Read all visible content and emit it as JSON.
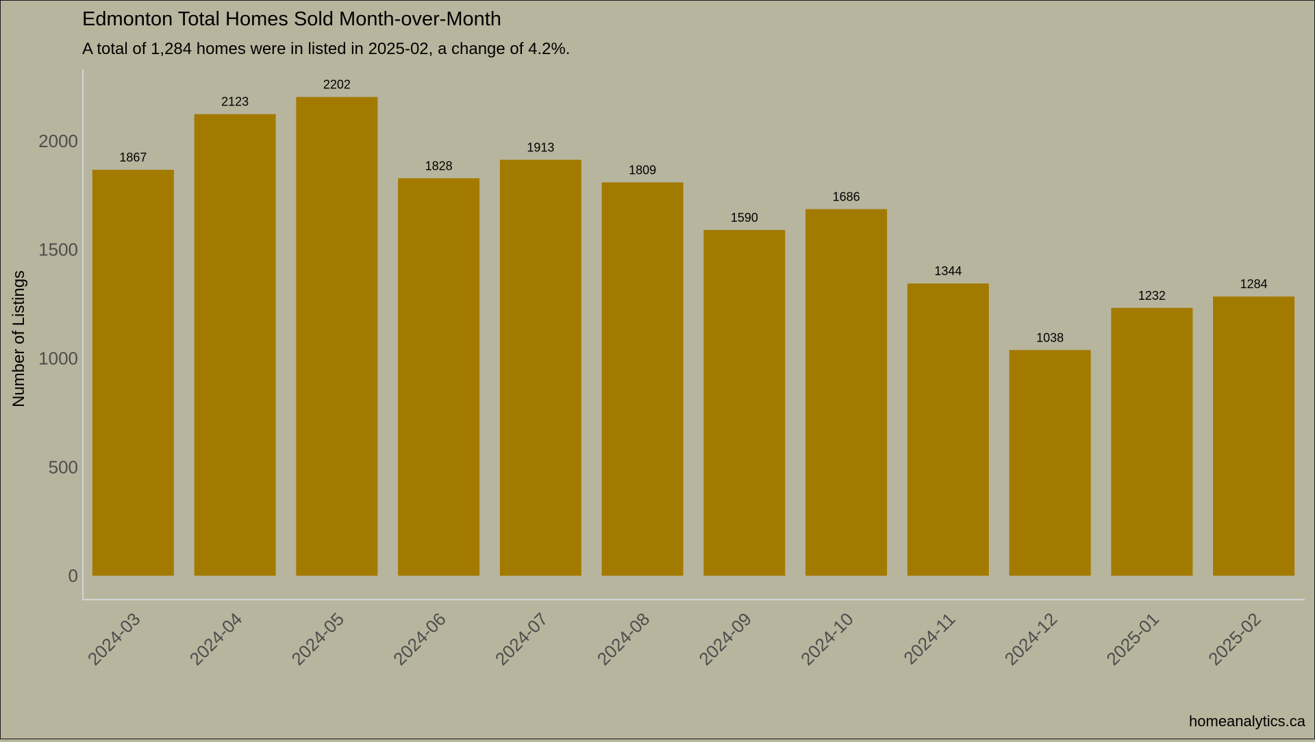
{
  "chart_data": {
    "type": "bar",
    "title": "Edmonton Total Homes Sold Month-over-Month",
    "subtitle": "A total of 1,284 homes were in listed in 2025-02, a change of 4.2%.",
    "xlabel": "",
    "ylabel": "Number of Listings",
    "caption": "homeanalytics.ca",
    "categories": [
      "2024-03",
      "2024-04",
      "2024-05",
      "2024-06",
      "2024-07",
      "2024-08",
      "2024-09",
      "2024-10",
      "2024-11",
      "2024-12",
      "2025-01",
      "2025-02"
    ],
    "values": [
      1867,
      2123,
      2202,
      1828,
      1913,
      1809,
      1590,
      1686,
      1344,
      1038,
      1232,
      1284
    ],
    "ylim": [
      -110,
      2330
    ],
    "yticks": [
      0,
      500,
      1000,
      1500,
      2000
    ],
    "grid": false,
    "legend": "none",
    "colors": {
      "background": "#b8b59e",
      "bar": "#a37a00",
      "axis_line": "#d2d5d9",
      "tick_label": "#4d4d4d",
      "text": "#000000"
    }
  }
}
